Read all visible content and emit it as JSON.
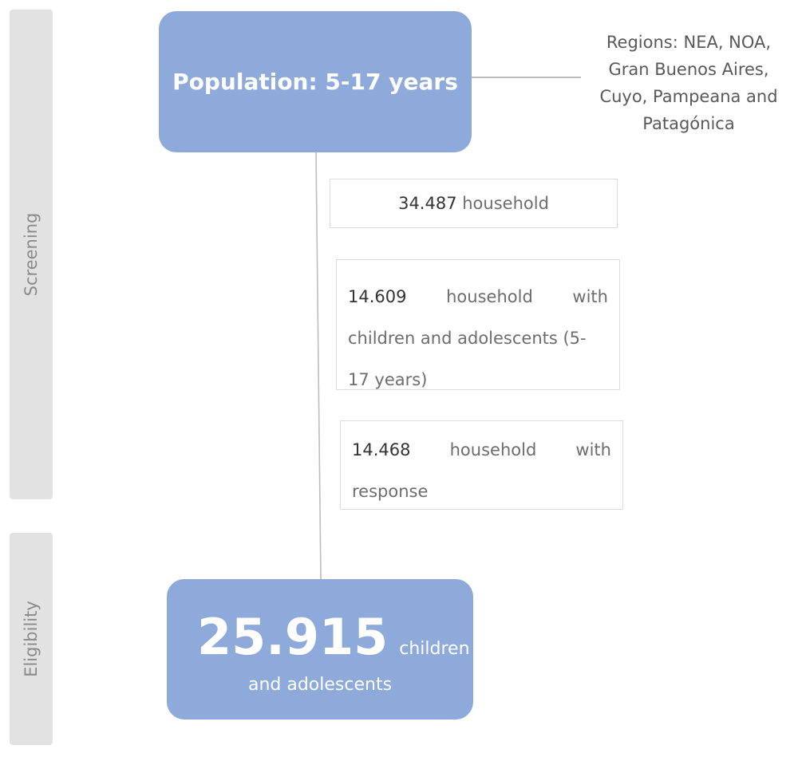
{
  "stages": {
    "screening": "Screening",
    "eligibility": "Eligibility"
  },
  "population": {
    "title": "Population: 5-17 years"
  },
  "regions": {
    "line1": "Regions: NEA, NOA,",
    "line2": "Gran Buenos Aires,",
    "line3": "Cuyo, Pampeana and",
    "line4": "Patagónica"
  },
  "counts": {
    "households": {
      "number": "34.487",
      "label": "household"
    },
    "with_children": {
      "number": "14.609",
      "word1": "household",
      "word2": "with",
      "line2": "children and adolescents (5-",
      "line3": "17 years)"
    },
    "with_response": {
      "number": "14.468",
      "word1": "household",
      "word2": "with",
      "line2": "response"
    }
  },
  "eligible": {
    "number": "25.915",
    "unit_part1": "children",
    "unit_part2": "and adolescents"
  },
  "colors": {
    "main_box": "#8eaadb",
    "stage_bar": "#e2e2e2",
    "connector": "#bdbdbd"
  }
}
